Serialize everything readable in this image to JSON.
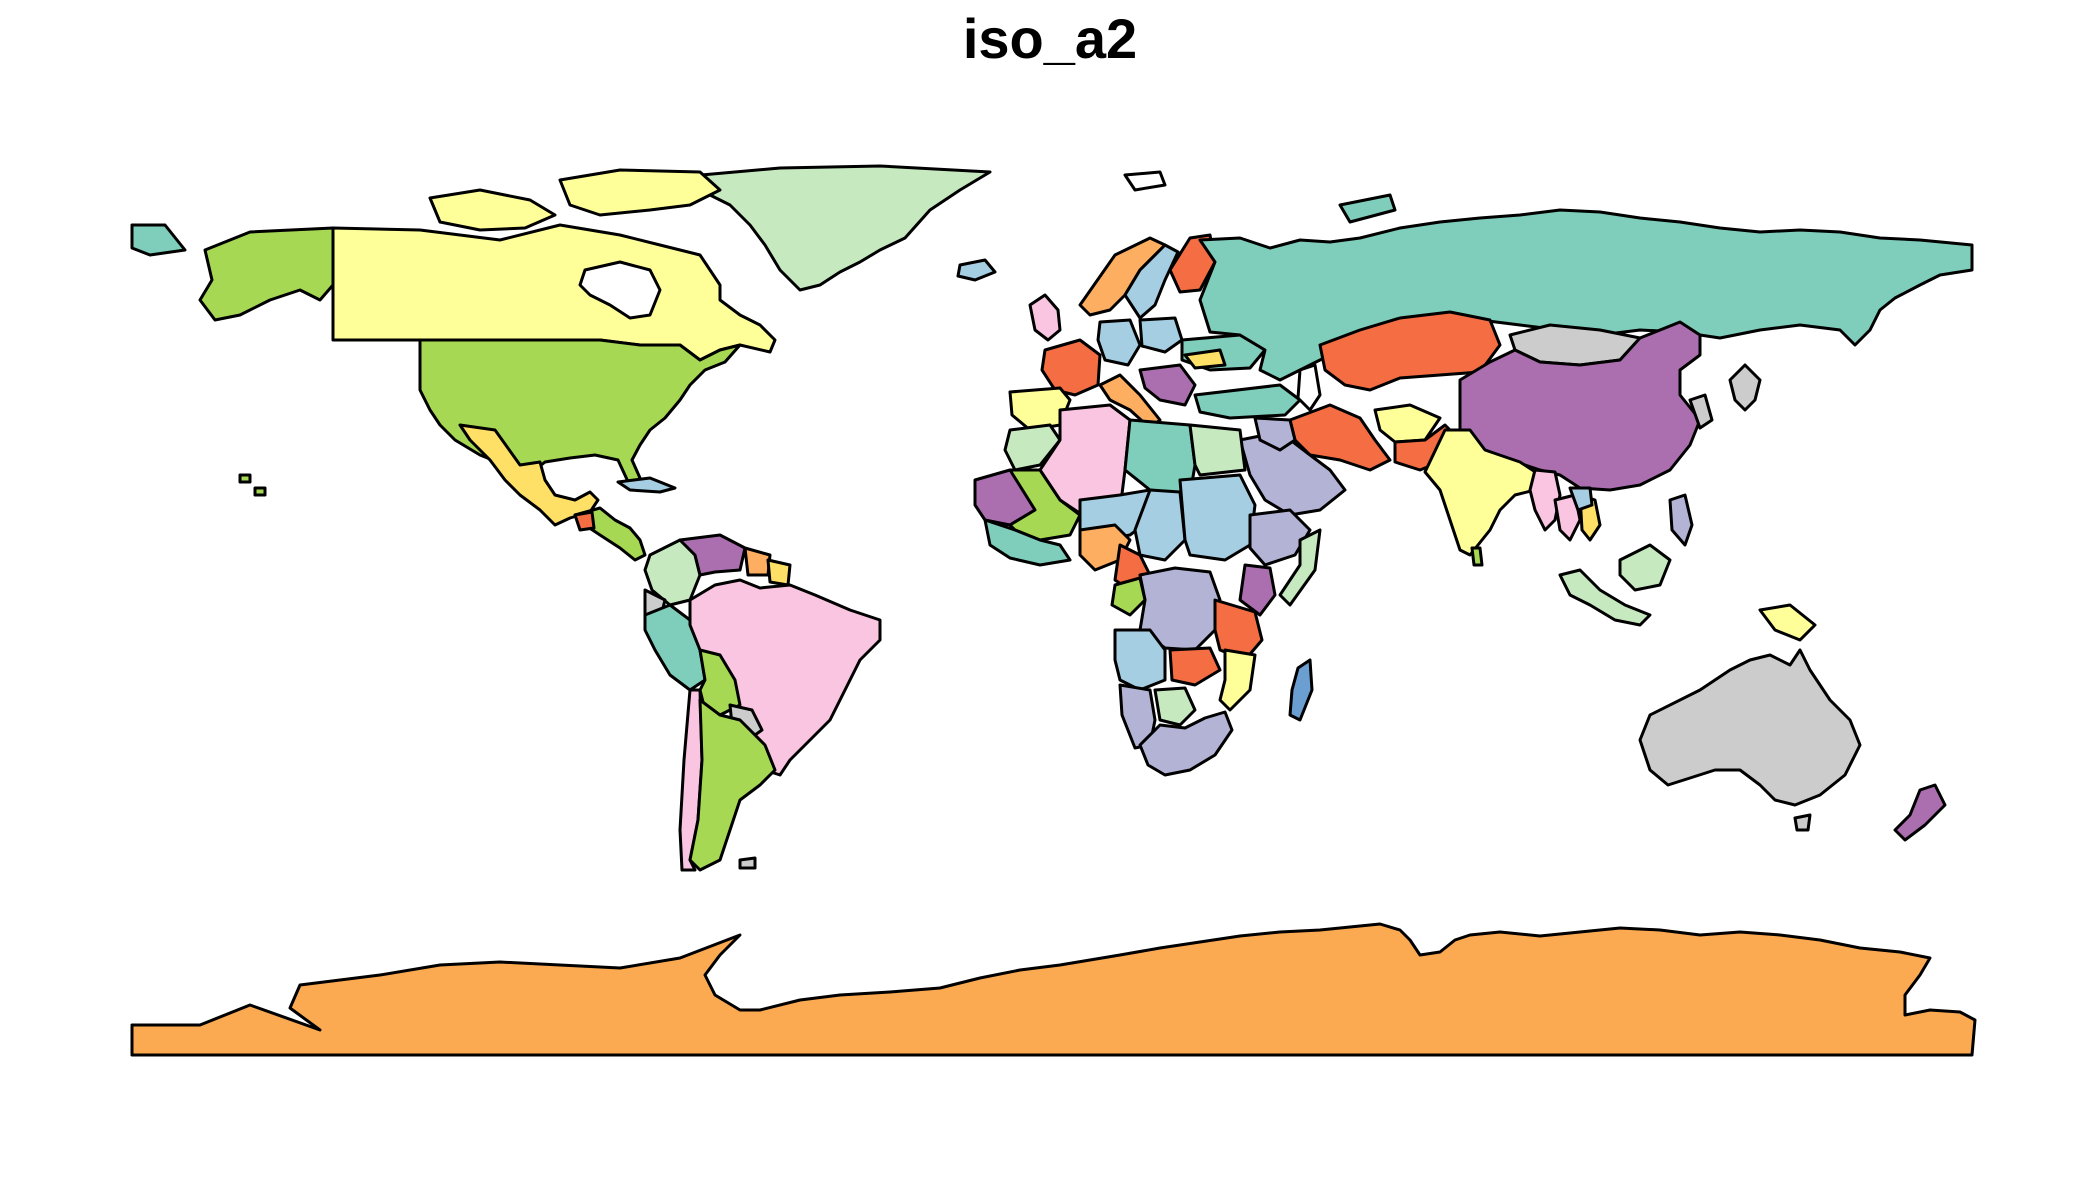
{
  "map": {
    "title": "iso_a2",
    "palette": [
      "#7fcdbb",
      "#a6d854",
      "#ffff99",
      "#c7e9c0",
      "#fdae61",
      "#f46d43",
      "#a6cee3",
      "#ab6fb0",
      "#f9c5e1",
      "#b3b3d6",
      "#cccccc",
      "#ffe066",
      "#f2f2f2"
    ]
  }
}
